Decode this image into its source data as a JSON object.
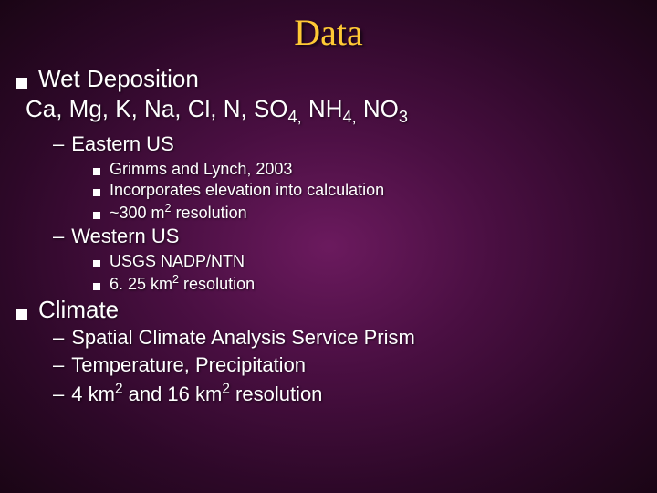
{
  "title": "Data",
  "colors": {
    "title_color": "#ffc935",
    "text_color": "#ffffff",
    "bg_center": "#6b1a5e",
    "bg_outer": "#1a0515"
  },
  "fonts": {
    "title_family": "Times New Roman, serif",
    "body_family": "Arial, sans-serif",
    "title_size_pt": 40,
    "lvl1_size_pt": 26,
    "lvl2_size_pt": 22,
    "lvl3_size_pt": 18
  },
  "slide": {
    "wet_deposition": {
      "label": "Wet Deposition",
      "chemline_html": "Ca, Mg, K, Na, Cl, N, SO<sub>4,</sub> NH<sub>4,</sub> NO<sub>3</sub>",
      "eastern": {
        "label": "Eastern US",
        "items": [
          "Grimms and Lynch, 2003",
          "Incorporates elevation into calculation",
          "~300 m<sup>2</sup> resolution"
        ]
      },
      "western": {
        "label": "Western US",
        "items": [
          "USGS NADP/NTN",
          "6. 25 km<sup>2</sup> resolution"
        ]
      }
    },
    "climate": {
      "label": "Climate",
      "items": [
        "Spatial Climate Analysis Service Prism",
        "Temperature, Precipitation",
        "4 km<sup>2</sup> and 16 km<sup>2</sup> resolution"
      ]
    }
  }
}
